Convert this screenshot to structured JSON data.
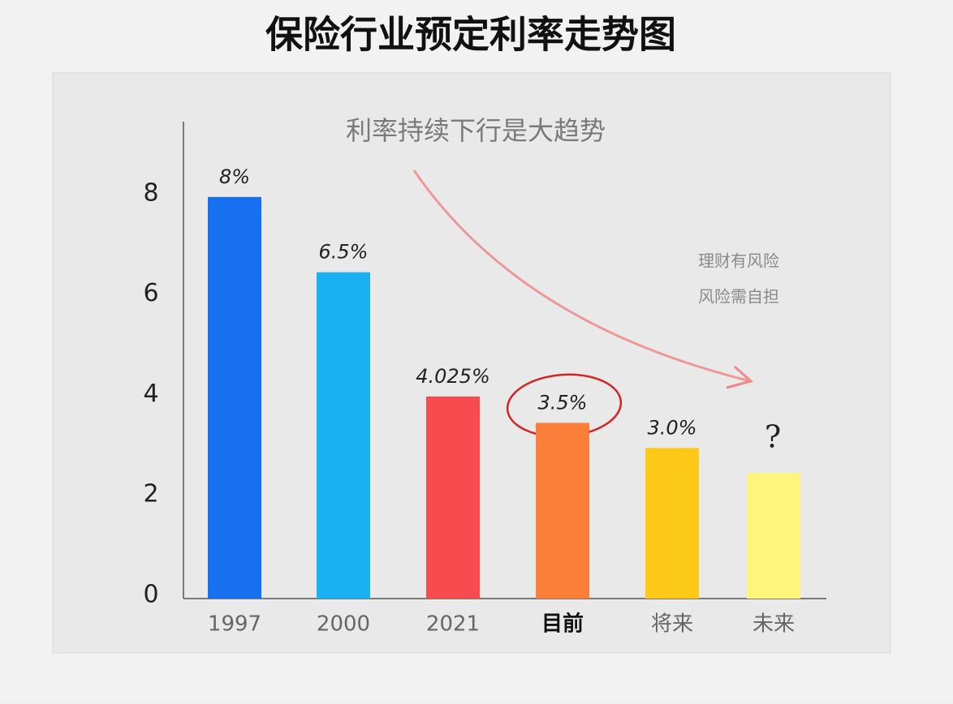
{
  "chart_data": {
    "type": "bar",
    "title": "保险行业预定利率走势图",
    "subtitle": "利率持续下行是大趋势",
    "categories": [
      "1997",
      "2000",
      "2021",
      "目前",
      "将来",
      "未来"
    ],
    "values": [
      8,
      6.5,
      4.025,
      3.5,
      3.0,
      2.5
    ],
    "value_labels": [
      "8%",
      "6.5%",
      "4.025%",
      "3.5%",
      "3.0%",
      null
    ],
    "colors": [
      "#1670f0",
      "#1bb0f2",
      "#f74b4e",
      "#fb7f38",
      "#fcc918",
      "#fff47c"
    ],
    "highlight": 3,
    "ylim": [
      0,
      9.5
    ],
    "yticks": [
      0,
      2,
      4,
      6,
      8
    ],
    "grid": false,
    "annotations": [
      "理财有风险",
      "风险需自担",
      "?"
    ]
  }
}
